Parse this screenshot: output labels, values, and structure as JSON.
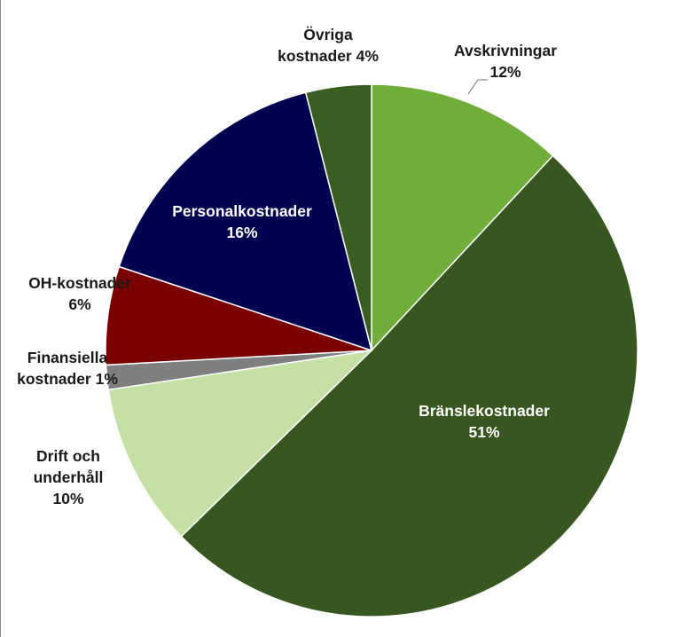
{
  "chart_data": {
    "type": "pie",
    "title": "",
    "slices": [
      {
        "name": "Avskrivningar",
        "value": 12,
        "label_lines": [
          "Avskrivningar",
          "12%"
        ],
        "color": "#70AD3A",
        "label_color": "#1a1a1a"
      },
      {
        "name": "Bränslekostnader",
        "value": 51,
        "label_lines": [
          "Bränslekostnader",
          "51%"
        ],
        "color": "#375620",
        "label_color": "#ffffff"
      },
      {
        "name": "Drift och underhåll",
        "value": 10,
        "label_lines": [
          "Drift och",
          "underhåll",
          "10%"
        ],
        "color": "#C5E0A5",
        "label_color": "#1a1a1a"
      },
      {
        "name": "Finansiella kostnader",
        "value": 1.5,
        "label_lines": [
          "Finansiella",
          "kostnader 1%"
        ],
        "color": "#7F7F7F",
        "label_color": "#1a1a1a"
      },
      {
        "name": "OH-kostnader",
        "value": 6,
        "label_lines": [
          "OH-kostnader",
          "6%"
        ],
        "color": "#7B0000",
        "label_color": "#1a1a1a"
      },
      {
        "name": "Personalkostnader",
        "value": 16,
        "label_lines": [
          "Personalkostnader",
          "16%"
        ],
        "color": "#000050",
        "label_color": "#ffffff"
      },
      {
        "name": "Övriga kostnader",
        "value": 4,
        "label_lines": [
          "Övriga",
          "kostnader 4%"
        ],
        "color": "#3A5E22",
        "label_color": "#1a1a1a"
      }
    ],
    "start_angle_deg": 0,
    "direction": "clockwise",
    "legend": "none",
    "slice_border_color": "#ffffff"
  }
}
